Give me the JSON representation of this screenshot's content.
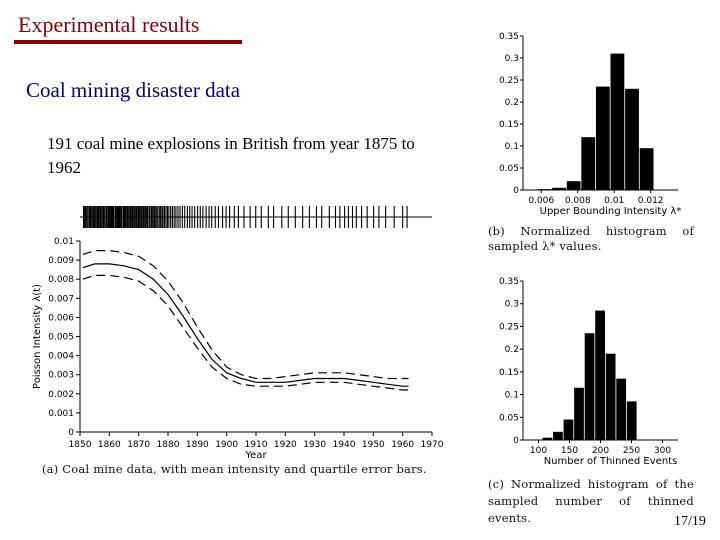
{
  "slide": {
    "title": "Experimental results",
    "subtitle": "Coal mining disaster data",
    "description": "191 coal mine explosions in British from year 1875 to 1962",
    "caption_a": "(a)  Coal mine data, with mean intensity and quartile error bars.",
    "caption_b": "(b)  Normalized  histogram  of sampled λ* values.",
    "caption_c": "(c)  Normalized  histogram  of the sampled number of thinned events.",
    "page": "17/19"
  },
  "chart_data": [
    {
      "type": "line",
      "xlabel": "Year",
      "ylabel": "Poisson Intensity λ(t)",
      "xlim": [
        1850,
        1970
      ],
      "ylim": [
        0,
        0.01
      ],
      "xticks": [
        "1850",
        "1860",
        "1870",
        "1880",
        "1890",
        "1900",
        "1910",
        "1920",
        "1930",
        "1940",
        "1950",
        "1960",
        "1970"
      ],
      "yticks": [
        "0",
        "0.001",
        "0.002",
        "0.003",
        "0.004",
        "0.005",
        "0.006",
        "0.007",
        "0.008",
        "0.009",
        "0.01"
      ],
      "x": [
        1851,
        1855,
        1860,
        1865,
        1870,
        1875,
        1880,
        1885,
        1890,
        1895,
        1900,
        1905,
        1910,
        1915,
        1920,
        1925,
        1930,
        1935,
        1940,
        1945,
        1950,
        1955,
        1960,
        1962
      ],
      "series": [
        {
          "values": [
            0.0086,
            0.0088,
            0.0088,
            0.0087,
            0.0085,
            0.008,
            0.0072,
            0.0061,
            0.0049,
            0.0038,
            0.0031,
            0.0028,
            0.0026,
            0.0026,
            0.0026,
            0.0027,
            0.0028,
            0.0028,
            0.0028,
            0.0027,
            0.0026,
            0.0025,
            0.0024,
            0.0024
          ]
        },
        {
          "values": [
            0.0093,
            0.0095,
            0.0095,
            0.0094,
            0.0092,
            0.0087,
            0.0079,
            0.0068,
            0.0055,
            0.0043,
            0.0034,
            0.003,
            0.0028,
            0.0028,
            0.0029,
            0.003,
            0.0031,
            0.0031,
            0.0031,
            0.003,
            0.0029,
            0.0028,
            0.0028,
            0.0028
          ]
        },
        {
          "values": [
            0.008,
            0.0082,
            0.0082,
            0.0081,
            0.0079,
            0.0074,
            0.0066,
            0.0055,
            0.0044,
            0.0034,
            0.0028,
            0.0025,
            0.0024,
            0.0024,
            0.0024,
            0.0025,
            0.0026,
            0.0026,
            0.0026,
            0.0025,
            0.0024,
            0.0023,
            0.0022,
            0.0022
          ]
        }
      ],
      "rug_years": [
        1851.2,
        1851.6,
        1851.6,
        1851.9,
        1852.3,
        1852.5,
        1853.0,
        1853.2,
        1853.5,
        1853.6,
        1854.0,
        1854.4,
        1854.6,
        1855.0,
        1855.1,
        1855.5,
        1855.9,
        1856.1,
        1856.4,
        1856.8,
        1857.0,
        1857.2,
        1857.6,
        1858.0,
        1858.1,
        1858.3,
        1858.8,
        1859.0,
        1859.3,
        1859.7,
        1860.0,
        1860.3,
        1860.6,
        1860.8,
        1861.1,
        1861.4,
        1861.6,
        1862.1,
        1862.4,
        1862.8,
        1863.0,
        1863.3,
        1863.6,
        1864.0,
        1864.2,
        1864.7,
        1865.0,
        1865.3,
        1865.6,
        1866.0,
        1866.2,
        1866.6,
        1866.8,
        1867.2,
        1867.5,
        1867.9,
        1868.1,
        1868.5,
        1868.8,
        1869.2,
        1869.5,
        1869.9,
        1870.2,
        1870.5,
        1870.9,
        1871.2,
        1871.6,
        1871.9,
        1872.3,
        1872.6,
        1873.0,
        1873.5,
        1873.9,
        1874.4,
        1874.8,
        1875.2,
        1875.6,
        1876.0,
        1876.5,
        1877.0,
        1877.4,
        1877.9,
        1878.3,
        1878.8,
        1879.3,
        1879.8,
        1880.3,
        1880.9,
        1881.5,
        1882.1,
        1882.7,
        1883.4,
        1884.1,
        1884.9,
        1885.7,
        1886.6,
        1887.4,
        1888.2,
        1889.1,
        1890.1,
        1891.0,
        1891.9,
        1893.0,
        1894.0,
        1894.9,
        1896.1,
        1897.2,
        1898.6,
        1899.8,
        1901.0,
        1902.6,
        1904.0,
        1905.9,
        1908.0,
        1909.9,
        1911.8,
        1914.2,
        1916.0,
        1918.8,
        1921.0,
        1923.4,
        1925.9,
        1928.2,
        1930.6,
        1932.4,
        1935.0,
        1937.1,
        1938.6,
        1940.2,
        1941.5,
        1942.9,
        1944.2,
        1946.0,
        1947.9,
        1950.1,
        1951.9,
        1954.2,
        1957.1,
        1960.0,
        1961.5
      ],
      "caption_ref": "a"
    },
    {
      "type": "bar",
      "xlabel": "Upper Bounding Intensity λ*",
      "xticks": [
        "0.006",
        "0.008",
        "0.01",
        "0.012"
      ],
      "xlim": [
        0.005,
        0.0135
      ],
      "yticks": [
        "0",
        "0.05",
        "0.1",
        "0.15",
        "0.2",
        "0.25",
        "0.3",
        "0.35"
      ],
      "ylim": [
        0,
        0.35
      ],
      "bin_width": 0.0008,
      "bin_centers": [
        0.0062,
        0.007,
        0.0078,
        0.0086,
        0.0094,
        0.0102,
        0.011,
        0.0118,
        0.0126
      ],
      "values": [
        0.002,
        0.005,
        0.02,
        0.12,
        0.235,
        0.31,
        0.23,
        0.095,
        0.0
      ],
      "caption_ref": "b"
    },
    {
      "type": "bar",
      "xlabel": "Number of Thinned Events",
      "xticks": [
        "100",
        "150",
        "200",
        "250",
        "300"
      ],
      "xlim": [
        75,
        325
      ],
      "yticks": [
        "0",
        "0.05",
        "0.1",
        "0.15",
        "0.2",
        "0.25",
        "0.3",
        "0.35"
      ],
      "ylim": [
        0,
        0.35
      ],
      "bin_width": 17,
      "bin_centers": [
        115,
        132,
        149,
        166,
        183,
        200,
        217,
        234,
        251,
        268,
        285
      ],
      "values": [
        0.005,
        0.018,
        0.045,
        0.115,
        0.235,
        0.285,
        0.19,
        0.135,
        0.085,
        0.0,
        0.0
      ],
      "caption_ref": "c"
    }
  ]
}
